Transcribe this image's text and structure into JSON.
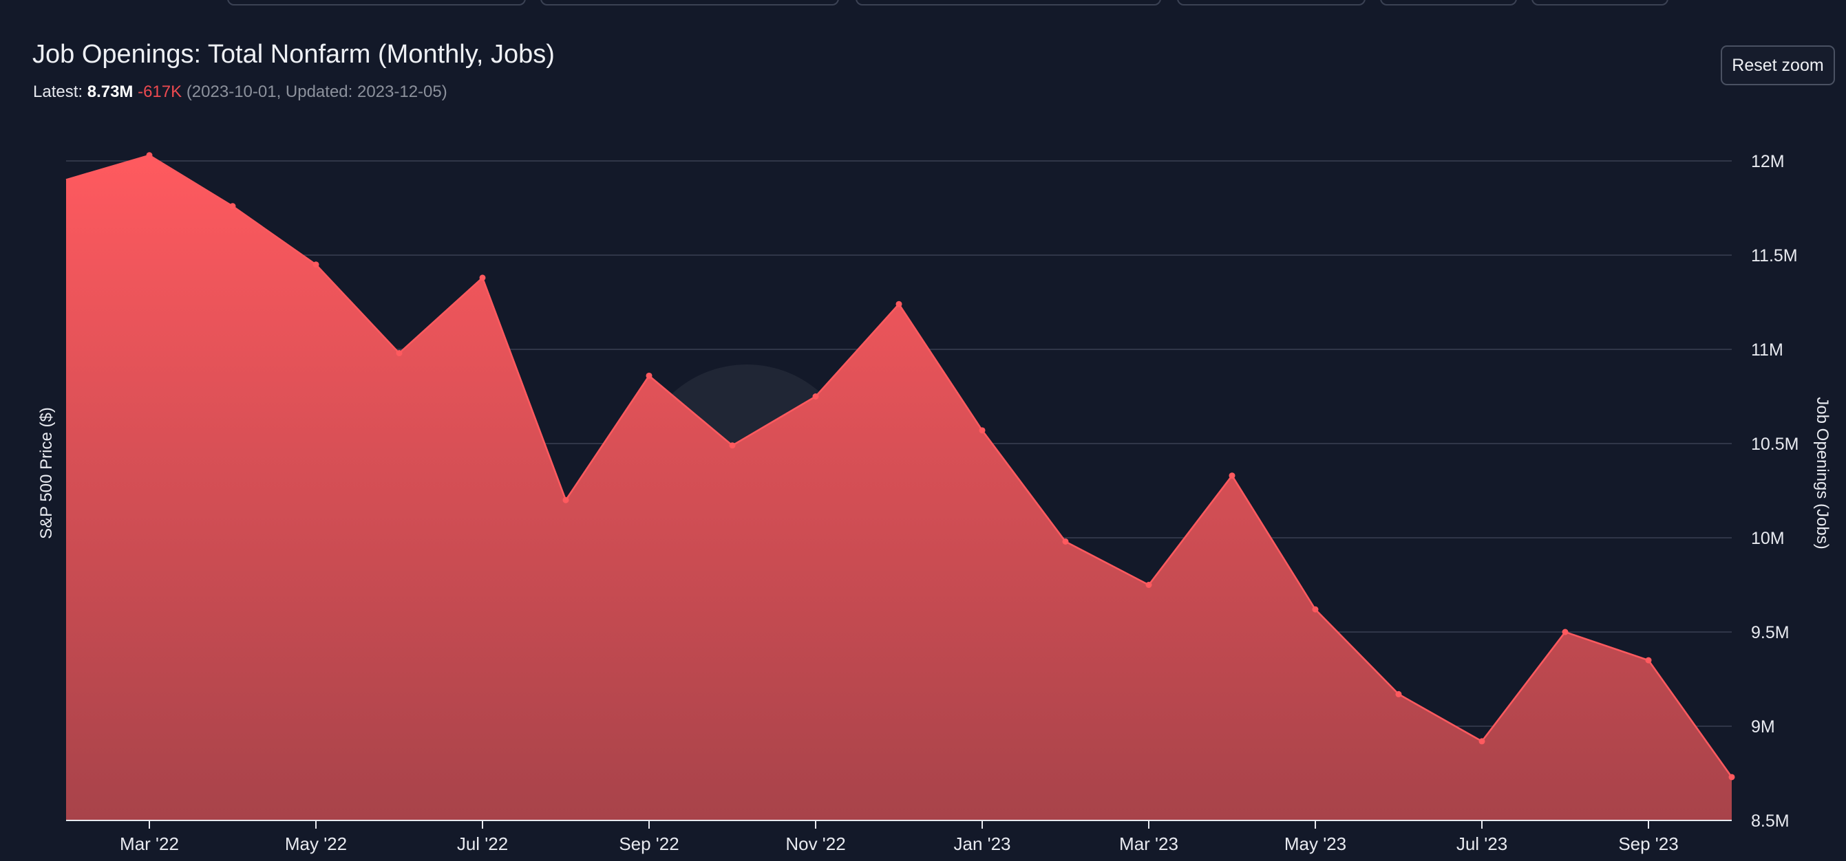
{
  "header": {
    "title": "Job Openings: Total Nonfarm (Monthly, Jobs)",
    "latest_label": "Latest:",
    "latest_value": "8.73M",
    "latest_change": "-617K",
    "latest_meta": "(2023-10-01, Updated: 2023-12-05)"
  },
  "toolbar": {
    "reset_zoom_label": "Reset zoom"
  },
  "colors": {
    "background": "#131929",
    "series_line": "#ff5a5f",
    "area_top": "#ff5a5f",
    "area_bottom": "#a8434a",
    "negative_change": "#ee4a50"
  },
  "chart_data": {
    "type": "area",
    "title": "Job Openings: Total Nonfarm (Monthly, Jobs)",
    "y_left_label": "S&P 500 Price ($)",
    "y_right_label": "Job Openings (Jobs)",
    "ylim": [
      8500000,
      12000000
    ],
    "y_ticks": [
      {
        "value": 8500000,
        "label": "8.5M"
      },
      {
        "value": 9000000,
        "label": "9M"
      },
      {
        "value": 9500000,
        "label": "9.5M"
      },
      {
        "value": 10000000,
        "label": "10M"
      },
      {
        "value": 10500000,
        "label": "10.5M"
      },
      {
        "value": 11000000,
        "label": "11M"
      },
      {
        "value": 11500000,
        "label": "11.5M"
      },
      {
        "value": 12000000,
        "label": "12M"
      }
    ],
    "x_ticks": [
      "Mar '22",
      "May '22",
      "Jul '22",
      "Sep '22",
      "Nov '22",
      "Jan '23",
      "Mar '23",
      "May '23",
      "Jul '23",
      "Sep '23"
    ],
    "grid": true,
    "series": [
      {
        "x": [
          "2022-02-01",
          "2022-03-01",
          "2022-04-01",
          "2022-05-01",
          "2022-06-01",
          "2022-07-01",
          "2022-08-01",
          "2022-09-01",
          "2022-10-01",
          "2022-11-01",
          "2022-12-01",
          "2023-01-01",
          "2023-02-01",
          "2023-03-01",
          "2023-04-01",
          "2023-05-01",
          "2023-06-01",
          "2023-07-01",
          "2023-08-01",
          "2023-09-01",
          "2023-10-01"
        ],
        "values": [
          11900000,
          12030000,
          11760000,
          11450000,
          10980000,
          11380000,
          10200000,
          10860000,
          10490000,
          10750000,
          11240000,
          10570000,
          9980000,
          9750000,
          10330000,
          9620000,
          9170000,
          8920000,
          9500000,
          9350000,
          8730000
        ]
      }
    ]
  }
}
